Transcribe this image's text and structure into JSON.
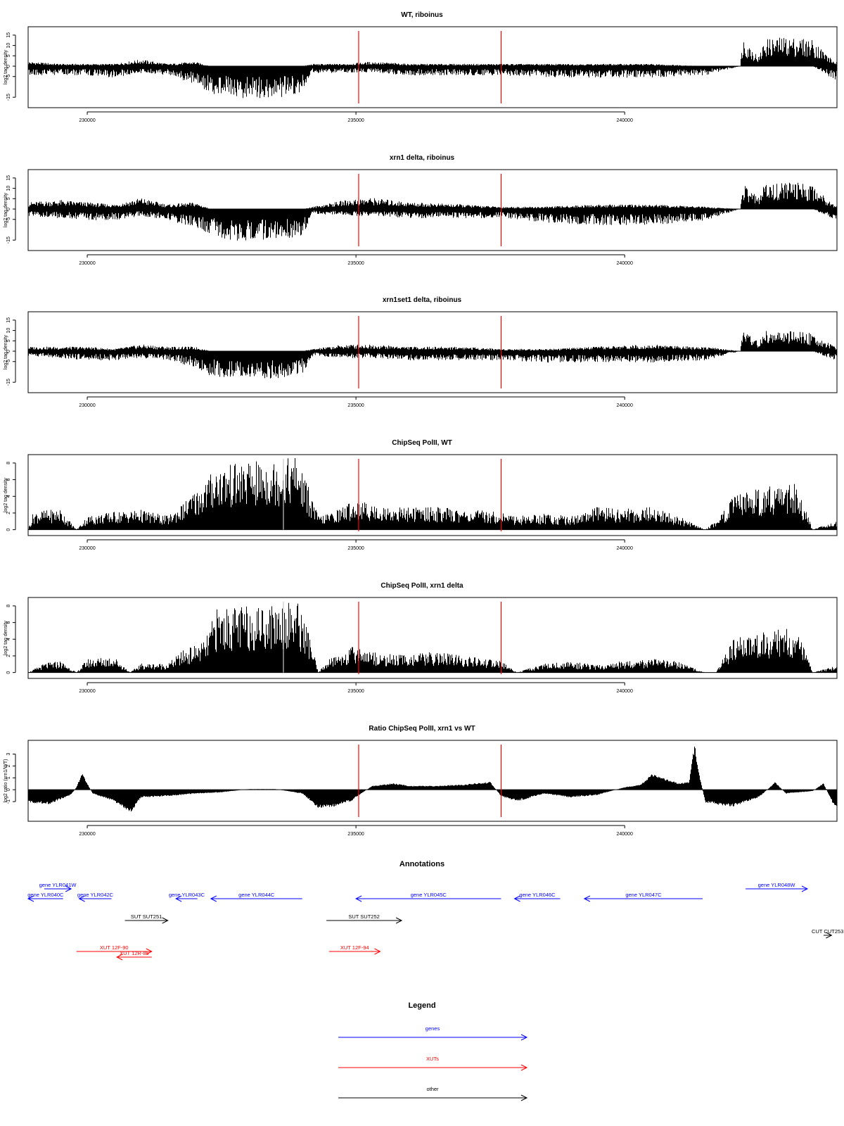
{
  "colors": {
    "signal": "#000000",
    "marker": "#ff0000",
    "gene": "#0000ff",
    "xut": "#ff0000",
    "other": "#000000",
    "gap": "#c8c8c8"
  },
  "chart_data": [
    {
      "type": "area",
      "title": "WT, riboinus",
      "ylabel": "log2 tag density",
      "xlim": [
        228900,
        243950
      ],
      "ylim": [
        -18,
        17
      ],
      "yticks": [
        15,
        10,
        5,
        0,
        -5,
        -15
      ],
      "ytick_labels": [
        "15",
        "10",
        "5",
        "0",
        "-5",
        "-15"
      ],
      "xticks": [
        230000,
        235000,
        240000
      ],
      "xtick_labels": [
        "230000",
        "235000",
        "240000"
      ],
      "markers": [
        235050,
        237700
      ],
      "baseline": 0,
      "x": [
        228900,
        229500,
        230000,
        230500,
        231000,
        231500,
        232000,
        232300,
        232800,
        233500,
        234000,
        234200,
        234800,
        235300,
        236000,
        237000,
        237700,
        238500,
        239500,
        240500,
        241500,
        242150,
        242200,
        242500,
        242600,
        243000,
        243500,
        243900
      ],
      "pos": [
        2,
        1,
        1,
        1,
        3,
        1,
        2,
        0,
        0,
        0,
        0,
        1,
        1,
        2,
        1,
        1,
        1,
        1,
        1,
        1,
        0,
        0,
        13,
        4,
        12,
        13,
        12,
        2
      ],
      "neg": [
        -4,
        -4,
        -4,
        -5,
        -3,
        -4,
        -8,
        -12,
        -14,
        -14,
        -12,
        -3,
        -3,
        -3,
        -4,
        -4,
        -4,
        -5,
        -5,
        -5,
        -4,
        0,
        0,
        0,
        0,
        0,
        0,
        -6
      ]
    },
    {
      "type": "area",
      "title": "xrn1 delta, riboinus",
      "ylabel": "log2 tag density",
      "xlim": [
        228900,
        243950
      ],
      "ylim": [
        -18,
        17
      ],
      "yticks": [
        15,
        10,
        5,
        0,
        -5,
        -15
      ],
      "ytick_labels": [
        "15",
        "10",
        "5",
        "0",
        "-5",
        "-15"
      ],
      "xticks": [
        230000,
        235000,
        240000
      ],
      "xtick_labels": [
        "230000",
        "235000",
        "240000"
      ],
      "markers": [
        235050,
        237700
      ],
      "baseline": 0,
      "x": [
        228900,
        229500,
        230000,
        230500,
        231000,
        231500,
        232000,
        232300,
        232800,
        233500,
        234000,
        234200,
        234800,
        235300,
        236000,
        237000,
        237700,
        238500,
        239500,
        240500,
        241500,
        242150,
        242200,
        242500,
        242600,
        243000,
        243500,
        243900
      ],
      "pos": [
        3,
        4,
        3,
        2,
        5,
        2,
        3,
        0,
        0,
        0,
        0,
        1,
        4,
        5,
        3,
        2,
        1,
        1,
        2,
        2,
        1,
        0,
        11,
        5,
        11,
        12,
        11,
        2
      ],
      "neg": [
        -3,
        -4,
        -5,
        -5,
        -3,
        -5,
        -8,
        -12,
        -14,
        -14,
        -12,
        -2,
        -3,
        -3,
        -4,
        -4,
        -4,
        -6,
        -7,
        -7,
        -5,
        0,
        0,
        0,
        0,
        0,
        0,
        -5
      ]
    },
    {
      "type": "area",
      "title": "xrn1set1 delta, riboinus",
      "ylabel": "log2 tag density",
      "xlim": [
        228900,
        243950
      ],
      "ylim": [
        -18,
        17
      ],
      "yticks": [
        15,
        10,
        5,
        0,
        -5,
        -15
      ],
      "ytick_labels": [
        "15",
        "10",
        "5",
        "0",
        "-5",
        "-15"
      ],
      "xticks": [
        230000,
        235000,
        240000
      ],
      "xtick_labels": [
        "230000",
        "235000",
        "240000"
      ],
      "markers": [
        235050,
        237700
      ],
      "baseline": 0,
      "x": [
        228900,
        229500,
        230000,
        230500,
        231000,
        231500,
        232000,
        232300,
        232800,
        233500,
        234000,
        234200,
        234800,
        235300,
        236000,
        237000,
        237700,
        238500,
        239500,
        240500,
        241500,
        242150,
        242200,
        242500,
        242600,
        243000,
        243500,
        243900
      ],
      "pos": [
        2,
        2,
        2,
        1,
        3,
        2,
        2,
        0,
        0,
        0,
        0,
        1,
        3,
        3,
        2,
        2,
        1,
        1,
        2,
        3,
        2,
        0,
        10,
        4,
        9,
        9,
        8,
        2
      ],
      "neg": [
        -2,
        -3,
        -4,
        -4,
        -3,
        -4,
        -7,
        -11,
        -12,
        -12,
        -10,
        -2,
        -3,
        -3,
        -4,
        -4,
        -4,
        -5,
        -5,
        -5,
        -4,
        0,
        0,
        0,
        0,
        0,
        0,
        -4
      ]
    },
    {
      "type": "area",
      "title": "ChipSeq PolII, WT",
      "ylabel": "log2 tag density",
      "xlim": [
        228900,
        243950
      ],
      "ylim": [
        -0.2,
        8.5
      ],
      "yticks": [
        0,
        2,
        4,
        6,
        8
      ],
      "ytick_labels": [
        "0",
        "2",
        "4",
        "6",
        "8"
      ],
      "xticks": [
        230000,
        235000,
        240000
      ],
      "xtick_labels": [
        "230000",
        "235000",
        "240000"
      ],
      "markers": [
        235050,
        237700
      ],
      "baseline": 0,
      "gap_x": 233650,
      "x": [
        228900,
        229000,
        229500,
        229800,
        230000,
        230500,
        231000,
        231500,
        231800,
        232200,
        232400,
        232800,
        233200,
        233600,
        233900,
        234100,
        234300,
        234500,
        235000,
        235500,
        236000,
        236500,
        237000,
        237700,
        238000,
        238500,
        239000,
        239500,
        240000,
        240500,
        241000,
        241500,
        241700,
        242000,
        242400,
        242800,
        243200,
        243500,
        243900
      ],
      "pos": [
        0,
        2,
        2.3,
        0,
        1.5,
        2,
        2.2,
        1.5,
        3,
        5.5,
        7,
        7.3,
        7.5,
        7.8,
        8.2,
        5,
        1.5,
        1.8,
        3.3,
        2.5,
        2.5,
        2.5,
        2.2,
        2,
        1.5,
        1.8,
        1.5,
        2.5,
        2.3,
        2.5,
        1.5,
        0,
        1,
        3.5,
        4.5,
        5,
        5,
        0,
        1
      ],
      "neg": null
    },
    {
      "type": "area",
      "title": "ChipSeq PolII, xrn1 delta",
      "ylabel": "log2 tag density",
      "xlim": [
        228900,
        243950
      ],
      "ylim": [
        -0.2,
        8.5
      ],
      "yticks": [
        0,
        2,
        4,
        6,
        8
      ],
      "ytick_labels": [
        "0",
        "2",
        "4",
        "6",
        "8"
      ],
      "xticks": [
        230000,
        235000,
        240000
      ],
      "xtick_labels": [
        "230000",
        "235000",
        "240000"
      ],
      "markers": [
        235050,
        237700
      ],
      "baseline": 0,
      "gap_x": 233650,
      "x": [
        228900,
        229200,
        229500,
        229800,
        230000,
        230500,
        230800,
        231000,
        231500,
        231800,
        232200,
        232400,
        232800,
        233200,
        233600,
        233900,
        234100,
        234300,
        234500,
        235000,
        235500,
        236000,
        236500,
        237000,
        237700,
        238000,
        238500,
        239000,
        239500,
        240000,
        240500,
        241000,
        241500,
        241700,
        242000,
        242400,
        242800,
        243200,
        243500,
        243900
      ],
      "pos": [
        0,
        1,
        1.3,
        0,
        1.5,
        1.8,
        0,
        1,
        1,
        2.5,
        3.5,
        7,
        7.2,
        7.4,
        7.8,
        8,
        5,
        0,
        1.5,
        3,
        2,
        2,
        2.3,
        1.8,
        1.3,
        0,
        1,
        1.2,
        0.8,
        1.3,
        1.5,
        1.2,
        0,
        0,
        3.5,
        4.5,
        4.8,
        5,
        0,
        0.7
      ],
      "neg": null
    },
    {
      "type": "area",
      "title": "Ratio ChipSeq PolII, xrn1 vs WT",
      "ylabel": "log2 ratio (xrn1/WT)",
      "xlim": [
        228900,
        243950
      ],
      "ylim": [
        -2.3,
        3.8
      ],
      "yticks": [
        3,
        2,
        1,
        0,
        -1
      ],
      "ytick_labels": [
        "3",
        "2",
        "1",
        "0",
        "-1"
      ],
      "xticks": [
        230000,
        235000,
        240000
      ],
      "xtick_labels": [
        "230000",
        "235000",
        "240000"
      ],
      "markers": [
        235050,
        237700
      ],
      "baseline": 0,
      "x": [
        228900,
        229300,
        229700,
        229800,
        229900,
        230100,
        230500,
        230800,
        231000,
        231500,
        232000,
        232500,
        233000,
        233500,
        234000,
        234300,
        234600,
        234900,
        235300,
        235700,
        236000,
        236500,
        237000,
        237500,
        237700,
        238000,
        238500,
        239000,
        239500,
        240000,
        240300,
        240500,
        241000,
        241200,
        241300,
        241400,
        241500,
        242000,
        242500,
        242800,
        243000,
        243500,
        243700,
        243900
      ],
      "y": [
        -1,
        -1.1,
        -0.4,
        0.2,
        1.3,
        -0.3,
        -0.9,
        -1.8,
        -0.6,
        -0.5,
        -0.3,
        -0.2,
        0.05,
        0.05,
        -0.3,
        -1.4,
        -1.3,
        -0.9,
        0.3,
        0.5,
        0.3,
        0.3,
        0.4,
        0.6,
        -0.5,
        -0.9,
        -0.3,
        -0.6,
        -0.4,
        0.2,
        0.4,
        1.2,
        0.5,
        0.6,
        3.6,
        1,
        -1,
        -1.3,
        -0.6,
        0.6,
        -0.3,
        -0.1,
        0.5,
        -1.3
      ],
      "neg": null
    }
  ],
  "annotations": {
    "title": "Annotations",
    "xlim": [
      228900,
      243950
    ],
    "features": [
      {
        "label": "gene YLR041W",
        "kind": "gene",
        "start": 229200,
        "end": 229700,
        "dir": "right",
        "row": 0
      },
      {
        "label": "gene YLR040C",
        "kind": "gene",
        "start": 228900,
        "end": 229550,
        "dir": "left",
        "row": 1
      },
      {
        "label": "gene YLR042C",
        "kind": "gene",
        "start": 229850,
        "end": 230450,
        "dir": "left",
        "row": 1
      },
      {
        "label": "gene YLR043C",
        "kind": "gene",
        "start": 231650,
        "end": 232050,
        "dir": "left",
        "row": 1
      },
      {
        "label": "gene YLR044C",
        "kind": "gene",
        "start": 232300,
        "end": 234000,
        "dir": "left",
        "row": 1
      },
      {
        "label": "gene YLR045C",
        "kind": "gene",
        "start": 235000,
        "end": 237700,
        "dir": "left",
        "row": 1
      },
      {
        "label": "gene YLR046C",
        "kind": "gene",
        "start": 237950,
        "end": 238800,
        "dir": "left",
        "row": 1
      },
      {
        "label": "gene YLR047C",
        "kind": "gene",
        "start": 239250,
        "end": 241450,
        "dir": "left",
        "row": 1
      },
      {
        "label": "gene YLR048W",
        "kind": "gene",
        "start": 242250,
        "end": 243400,
        "dir": "right",
        "row": 0
      },
      {
        "label": "SUT SUT251",
        "kind": "other",
        "start": 230700,
        "end": 231500,
        "dir": "right",
        "row": 2
      },
      {
        "label": "SUT SUT252",
        "kind": "other",
        "start": 234450,
        "end": 235850,
        "dir": "right",
        "row": 2
      },
      {
        "label": "CUT CUT253",
        "kind": "other",
        "start": 243700,
        "end": 243850,
        "dir": "right",
        "row": 3
      },
      {
        "label": "XUT 12F-90",
        "kind": "xut",
        "start": 229800,
        "end": 231200,
        "dir": "right",
        "row": 4
      },
      {
        "label": "XUT 12R-85",
        "kind": "xut",
        "start": 230550,
        "end": 231200,
        "dir": "left",
        "row": 5
      },
      {
        "label": "XUT 12F-94",
        "kind": "xut",
        "start": 234500,
        "end": 235450,
        "dir": "right",
        "row": 4
      }
    ]
  },
  "legend": {
    "title": "Legend",
    "items": [
      {
        "label": "genes",
        "kind": "gene"
      },
      {
        "label": "XUTs",
        "kind": "xut"
      },
      {
        "label": "other",
        "kind": "other"
      }
    ]
  }
}
